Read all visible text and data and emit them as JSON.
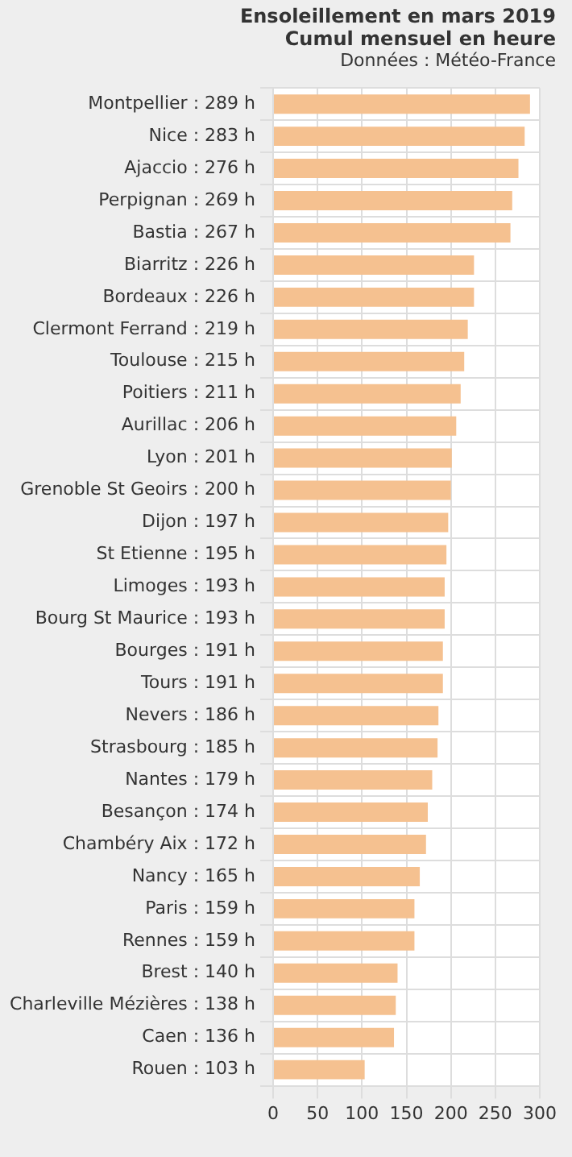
{
  "chart_data": {
    "type": "bar",
    "orientation": "horizontal",
    "title": "Ensoleillement en mars 2019",
    "subtitle": "Cumul mensuel en heure",
    "annotations": [
      "Données : Météo-France"
    ],
    "categories": [
      "Montpellier : 289 h",
      "Nice : 283 h",
      "Ajaccio : 276 h",
      "Perpignan : 269 h",
      "Bastia : 267 h",
      "Biarritz : 226 h",
      "Bordeaux : 226 h",
      "Clermont Ferrand : 219 h",
      "Toulouse : 215 h",
      "Poitiers : 211 h",
      "Aurillac : 206 h",
      "Lyon : 201 h",
      "Grenoble St Geoirs : 200 h",
      "Dijon : 197 h",
      "St Etienne : 195 h",
      "Limoges : 193 h",
      "Bourg St Maurice : 193 h",
      "Bourges : 191 h",
      "Tours : 191 h",
      "Nevers : 186 h",
      "Strasbourg : 185 h",
      "Nantes : 179 h",
      "Besançon : 174 h",
      "Chambéry Aix : 172 h",
      "Nancy : 165 h",
      "Paris : 159 h",
      "Rennes : 159 h",
      "Brest : 140 h",
      "Charleville Mézières : 138 h",
      "Caen : 136 h",
      "Rouen : 103 h"
    ],
    "values": [
      289,
      283,
      276,
      269,
      267,
      226,
      226,
      219,
      215,
      211,
      206,
      201,
      200,
      197,
      195,
      193,
      193,
      191,
      191,
      186,
      185,
      179,
      174,
      172,
      165,
      159,
      159,
      140,
      138,
      136,
      103
    ],
    "color": "#f5c190",
    "xlim": [
      0,
      300
    ],
    "xticks": [
      0,
      50,
      100,
      150,
      200,
      250,
      300
    ],
    "grid": true,
    "legend": false
  }
}
